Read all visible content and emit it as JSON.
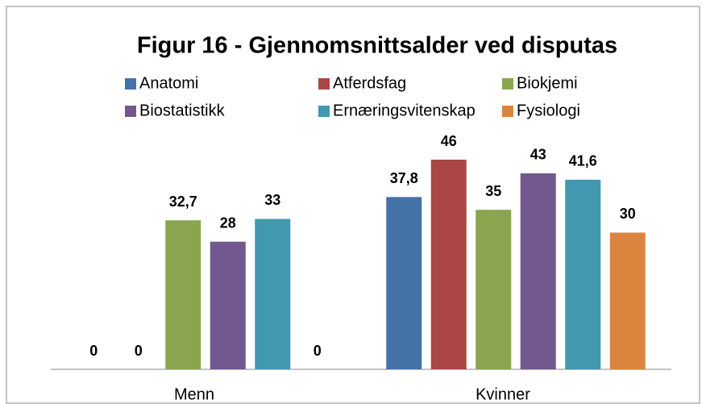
{
  "chart_data": {
    "type": "bar",
    "title": "Figur 16 - Gjennomsnittsalder ved disputas",
    "categories": [
      "Menn",
      "Kvinner"
    ],
    "series": [
      {
        "name": "Anatomi",
        "color": "#4572a7",
        "values": [
          0,
          37.8
        ],
        "value_labels": [
          "0",
          "37,8"
        ]
      },
      {
        "name": "Atferdsfag",
        "color": "#aa4643",
        "values": [
          0,
          46
        ],
        "value_labels": [
          "0",
          "46"
        ]
      },
      {
        "name": "Biokjemi",
        "color": "#89a54e",
        "values": [
          32.7,
          35
        ],
        "value_labels": [
          "32,7",
          "35"
        ]
      },
      {
        "name": "Biostatistikk",
        "color": "#71588f",
        "values": [
          28,
          43
        ],
        "value_labels": [
          "28",
          "43"
        ]
      },
      {
        "name": "Ernæringsvitenskap",
        "color": "#4198af",
        "values": [
          33,
          41.6
        ],
        "value_labels": [
          "33",
          "41,6"
        ]
      },
      {
        "name": "Fysiologi",
        "color": "#db843d",
        "values": [
          0,
          30
        ],
        "value_labels": [
          "0",
          "30"
        ]
      }
    ]
  }
}
